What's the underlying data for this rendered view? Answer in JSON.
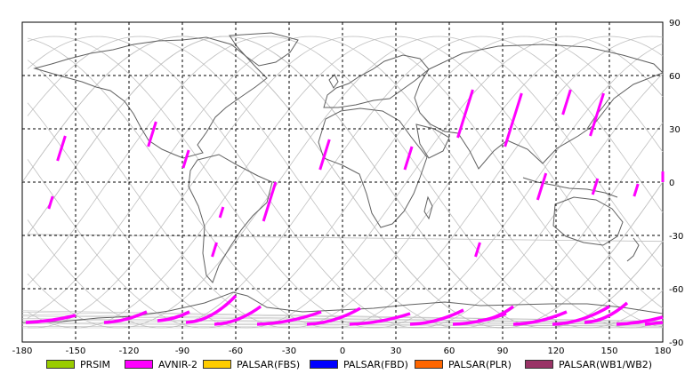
{
  "map": {
    "lat_ticks": [
      "90",
      "60",
      "30",
      "0",
      "-30",
      "-60",
      "-90"
    ],
    "lon_ticks": [
      "-180",
      "-150",
      "-120",
      "-90",
      "-60",
      "-30",
      "0",
      "30",
      "60",
      "90",
      "120",
      "150",
      "180"
    ],
    "lon_range": [
      -180,
      180
    ],
    "lat_range": [
      -90,
      90
    ],
    "colors": {
      "grid": "#000000",
      "coast": "#606060",
      "orbit": "#c0c0c0",
      "swath": "#ff00ff",
      "frame": "#000000"
    }
  },
  "legend": [
    {
      "label": "PRSIM",
      "color": "#99cc00"
    },
    {
      "label": "AVNIR-2",
      "color": "#ff00ff"
    },
    {
      "label": "PALSAR(FBS)",
      "color": "#ffcc00"
    },
    {
      "label": "PALSAR(FBD)",
      "color": "#0000ff"
    },
    {
      "label": "PALSAR(PLR)",
      "color": "#ff6600"
    },
    {
      "label": "PALSAR(WB1/WB2)",
      "color": "#993366"
    }
  ],
  "swaths": [
    {
      "lon": -158,
      "lat1": 12,
      "lat2": 26
    },
    {
      "lon": -164,
      "lat1": -15,
      "lat2": -8
    },
    {
      "lon": -107,
      "lat1": 20,
      "lat2": 34
    },
    {
      "lon": -88,
      "lat1": 8,
      "lat2": 18
    },
    {
      "lon": -68,
      "lat1": -20,
      "lat2": -14
    },
    {
      "lon": -72,
      "lat1": -42,
      "lat2": -34
    },
    {
      "lon": -41,
      "lat1": -22,
      "lat2": 0
    },
    {
      "lon": -10,
      "lat1": 7,
      "lat2": 24
    },
    {
      "lon": 37,
      "lat1": 7,
      "lat2": 20
    },
    {
      "lon": 69,
      "lat1": 25,
      "lat2": 52
    },
    {
      "lon": 96,
      "lat1": 20,
      "lat2": 50
    },
    {
      "lon": 76,
      "lat1": -42,
      "lat2": -34
    },
    {
      "lon": 112,
      "lat1": -10,
      "lat2": 5
    },
    {
      "lon": 126,
      "lat1": 38,
      "lat2": 52
    },
    {
      "lon": 143,
      "lat1": 26,
      "lat2": 50
    },
    {
      "lon": 142,
      "lat1": -7,
      "lat2": 2
    },
    {
      "lon": 165,
      "lat1": -8,
      "lat2": -1
    },
    {
      "lon": 183,
      "lat1": 0,
      "lat2": 6
    }
  ],
  "polar_swaths": [
    {
      "lon1": -178,
      "lat1": -79,
      "lon2": -150,
      "lat2": -75
    },
    {
      "lon1": -134,
      "lat1": -79,
      "lon2": -110,
      "lat2": -73
    },
    {
      "lon1": -104,
      "lat1": -78,
      "lon2": -86,
      "lat2": -73
    },
    {
      "lon1": -88,
      "lat1": -79,
      "lon2": -60,
      "lat2": -64
    },
    {
      "lon1": -72,
      "lat1": -80,
      "lon2": -46,
      "lat2": -70
    },
    {
      "lon1": -48,
      "lat1": -80,
      "lon2": -12,
      "lat2": -73
    },
    {
      "lon1": -20,
      "lat1": -80,
      "lon2": 10,
      "lat2": -71
    },
    {
      "lon1": 4,
      "lat1": -80,
      "lon2": 38,
      "lat2": -74
    },
    {
      "lon1": 38,
      "lat1": -80,
      "lon2": 68,
      "lat2": -72
    },
    {
      "lon1": 62,
      "lat1": -80,
      "lon2": 92,
      "lat2": -74
    },
    {
      "lon1": 76,
      "lat1": -78,
      "lon2": 96,
      "lat2": -70
    },
    {
      "lon1": 96,
      "lat1": -80,
      "lon2": 126,
      "lat2": -73
    },
    {
      "lon1": 118,
      "lat1": -80,
      "lon2": 150,
      "lat2": -70
    },
    {
      "lon1": 136,
      "lat1": -79,
      "lon2": 160,
      "lat2": -68
    },
    {
      "lon1": 154,
      "lat1": -80,
      "lon2": 184,
      "lat2": -76
    },
    {
      "lon1": 170,
      "lat1": -80,
      "lon2": 184,
      "lat2": -79
    }
  ]
}
